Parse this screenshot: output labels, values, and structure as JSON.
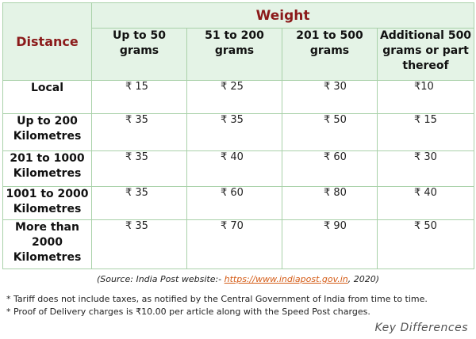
{
  "table": {
    "distance_header": "Distance",
    "weight_header": "Weight",
    "weight_columns": [
      "Up to 50 grams",
      "51 to 200 grams",
      "201 to 500 grams",
      "Additional 500 grams or part thereof"
    ],
    "rows": [
      {
        "label": "Local",
        "values": [
          "₹ 15",
          "₹ 25",
          "₹ 30",
          "₹10"
        ]
      },
      {
        "label": "Up to 200 Kilometres",
        "values": [
          "₹ 35",
          "₹ 35",
          "₹ 50",
          "₹ 15"
        ]
      },
      {
        "label": "201 to 1000 Kilometres",
        "values": [
          "₹  35",
          "₹ 40",
          "₹ 60",
          "₹ 30"
        ]
      },
      {
        "label": "1001 to 2000 Kilometres",
        "values": [
          "₹ 35",
          "₹ 60",
          "₹ 80",
          "₹ 40"
        ]
      },
      {
        "label": "More than 2000 Kilometres",
        "values": [
          "₹ 35",
          "₹ 70",
          "₹ 90",
          "₹ 50"
        ]
      }
    ]
  },
  "source": {
    "prefix": "(Source: India Post website:- ",
    "link": "https://www.indiapost.gov.in",
    "suffix": ", 2020)"
  },
  "notes": [
    "* Tariff does not include taxes, as notified by the Central Government of India from time to time.",
    "* Proof of Delivery charges is  ₹10.00 per article along with the Speed Post charges."
  ],
  "brand": "Key Differences",
  "colors": {
    "header_bg": "#e4f3e6",
    "header_title": "#8b1a1a",
    "border": "#a9d1a9",
    "link": "#d45a14"
  }
}
